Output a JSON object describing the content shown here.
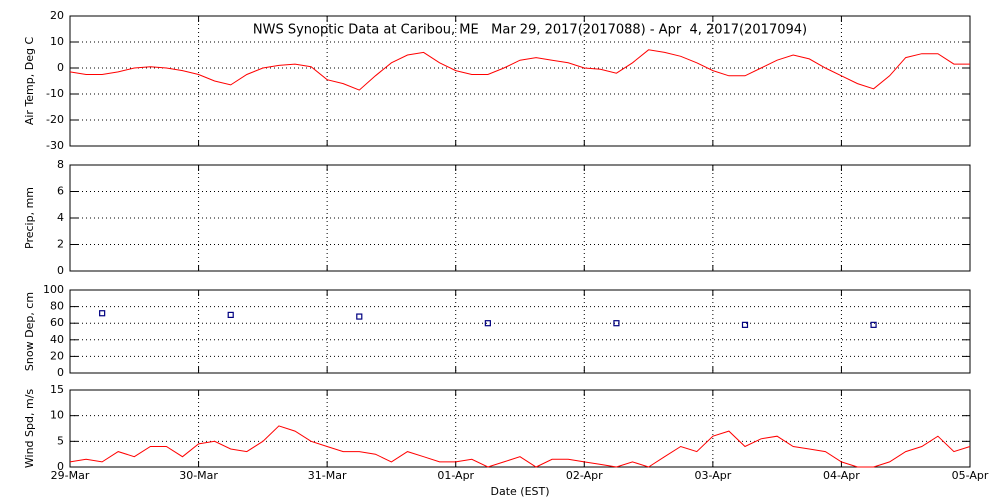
{
  "chart_data": [
    {
      "type": "line",
      "title": "NWS Synoptic Data at Caribou, ME   Mar 29, 2017(2017088) - Apr  4, 2017(2017094)",
      "ylabel": "Air Temp, Deg C",
      "color": "#ff0000",
      "x": [
        0,
        0.125,
        0.25,
        0.375,
        0.5,
        0.625,
        0.75,
        0.875,
        1,
        1.125,
        1.25,
        1.375,
        1.5,
        1.625,
        1.75,
        1.875,
        2,
        2.125,
        2.25,
        2.375,
        2.5,
        2.625,
        2.75,
        2.875,
        3,
        3.125,
        3.25,
        3.375,
        3.5,
        3.625,
        3.75,
        3.875,
        4,
        4.125,
        4.25,
        4.375,
        4.5,
        4.625,
        4.75,
        4.875,
        5,
        5.125,
        5.25,
        5.375,
        5.5,
        5.625,
        5.75,
        5.875,
        6,
        6.125,
        6.25,
        6.375,
        6.5,
        6.625,
        6.75,
        6.875,
        7
      ],
      "values": [
        -1.5,
        -2.5,
        -2.5,
        -1.5,
        0,
        0.5,
        0,
        -1,
        -2.5,
        -5,
        -6.5,
        -2.5,
        0,
        1,
        1.5,
        0.5,
        -4.5,
        -6,
        -8.5,
        -3,
        2,
        5,
        6,
        2,
        -1,
        -2.5,
        -2.5,
        0,
        3,
        4,
        3,
        2,
        0,
        -0.5,
        -2,
        2,
        7,
        6,
        4.5,
        2,
        -1,
        -3,
        -3,
        0,
        3,
        5,
        3.5,
        0,
        -3,
        -6,
        -8,
        -3,
        4,
        5.5,
        5.5,
        1.5,
        1.5
      ],
      "ylim": [
        -30,
        20
      ],
      "yticks": [
        -30,
        -20,
        -10,
        0,
        10,
        20
      ],
      "grid": true
    },
    {
      "type": "line",
      "ylabel": "Precip, mm",
      "color": "#ff0000",
      "ylim": [
        0,
        8
      ],
      "yticks": [
        0,
        2,
        4,
        6,
        8
      ],
      "grid": true
    },
    {
      "type": "scatter",
      "ylabel": "Snow Dep, cm",
      "color": "#000080",
      "marker": "square",
      "x": [
        0.25,
        1.25,
        2.25,
        3.25,
        4.25,
        5.25,
        6.25
      ],
      "values": [
        72,
        70,
        68,
        60,
        60,
        58,
        58
      ],
      "ylim": [
        0,
        100
      ],
      "yticks": [
        0,
        20,
        40,
        60,
        80,
        100
      ],
      "grid": true
    },
    {
      "type": "line",
      "ylabel": "Wind Spd, m/s",
      "xlabel": "Date (EST)",
      "color": "#ff0000",
      "x": [
        0,
        0.125,
        0.25,
        0.375,
        0.5,
        0.625,
        0.75,
        0.875,
        1,
        1.125,
        1.25,
        1.375,
        1.5,
        1.625,
        1.75,
        1.875,
        2,
        2.125,
        2.25,
        2.375,
        2.5,
        2.625,
        2.75,
        2.875,
        3,
        3.125,
        3.25,
        3.375,
        3.5,
        3.625,
        3.75,
        3.875,
        4,
        4.125,
        4.25,
        4.375,
        4.5,
        4.625,
        4.75,
        4.875,
        5,
        5.125,
        5.25,
        5.375,
        5.5,
        5.625,
        5.75,
        5.875,
        6,
        6.125,
        6.25,
        6.375,
        6.5,
        6.625,
        6.75,
        6.875,
        7
      ],
      "values": [
        1,
        1.5,
        1,
        3,
        2,
        4,
        4,
        2,
        4.5,
        5,
        3.5,
        3,
        5,
        8,
        7,
        5,
        4,
        3,
        3,
        2.5,
        1,
        3,
        2,
        1,
        1,
        1.5,
        0,
        1,
        2,
        0,
        1.5,
        1.5,
        1,
        0.5,
        0,
        1,
        0,
        2,
        4,
        3,
        6,
        7,
        4,
        5.5,
        6,
        4,
        3.5,
        3,
        1,
        0,
        0,
        1,
        3,
        4,
        6,
        3,
        4
      ],
      "ylim": [
        0,
        15
      ],
      "yticks": [
        0,
        5,
        10,
        15
      ],
      "grid": true,
      "xlim": [
        0,
        7
      ],
      "xticks": [
        {
          "value": 0,
          "label": "29-Mar"
        },
        {
          "value": 1,
          "label": "30-Mar"
        },
        {
          "value": 2,
          "label": "31-Mar"
        },
        {
          "value": 3,
          "label": "01-Apr"
        },
        {
          "value": 4,
          "label": "02-Apr"
        },
        {
          "value": 5,
          "label": "03-Apr"
        },
        {
          "value": 6,
          "label": "04-Apr"
        },
        {
          "value": 7,
          "label": "05-Apr"
        }
      ]
    }
  ]
}
